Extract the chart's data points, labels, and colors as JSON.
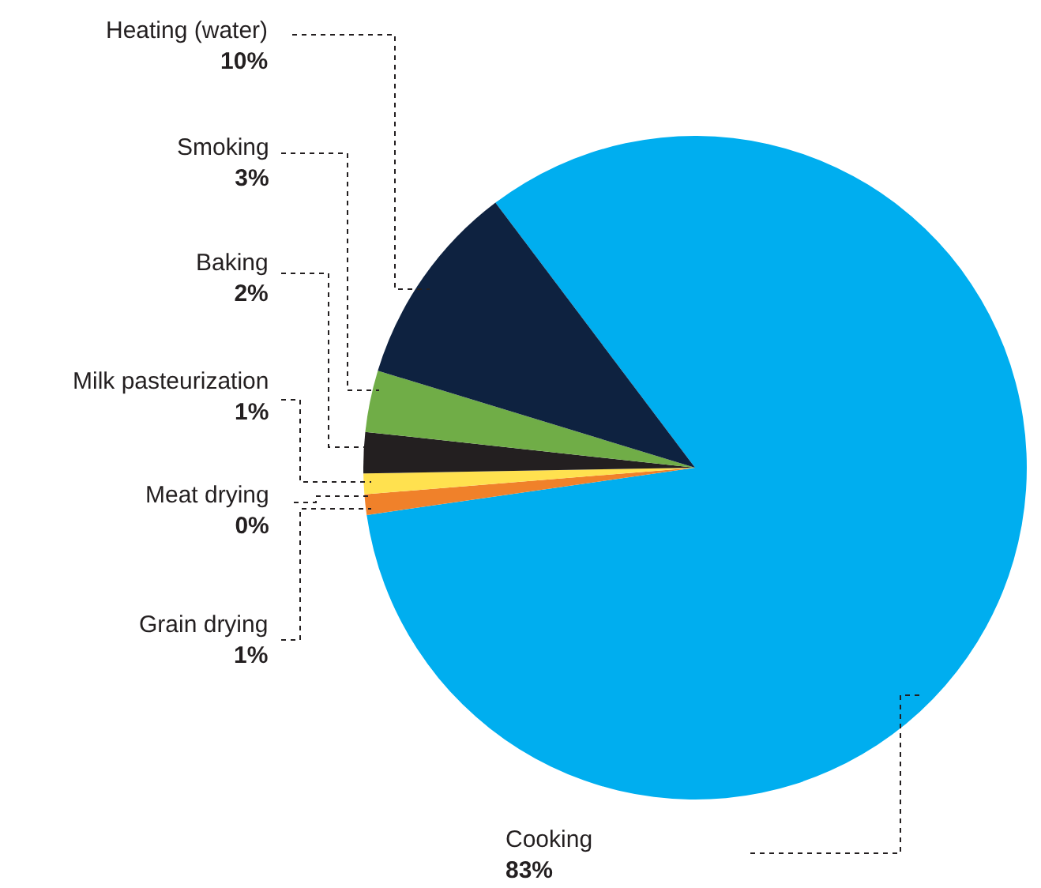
{
  "chart_data": {
    "type": "pie",
    "categories": [
      "Cooking",
      "Grain drying",
      "Meat drying",
      "Milk pasteurization",
      "Baking",
      "Smoking",
      "Heating (water)"
    ],
    "values": [
      83,
      1,
      0,
      1,
      2,
      3,
      10
    ],
    "colors": [
      "#00aeef",
      "#f0812a",
      "#e8e8e8",
      "#ffe14f",
      "#231f20",
      "#70ad47",
      "#0e2240"
    ],
    "value_labels": [
      "83%",
      "1%",
      "0%",
      "1%",
      "2%",
      "3%",
      "10%"
    ]
  }
}
